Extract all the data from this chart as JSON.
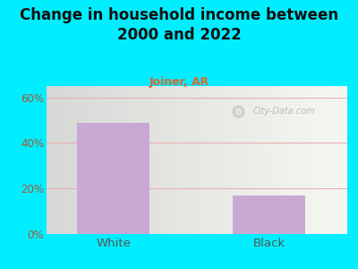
{
  "title": "Change in household income between\n2000 and 2022",
  "subtitle": "Joiner, AR",
  "categories": [
    "White",
    "Black"
  ],
  "values": [
    49,
    17
  ],
  "bar_color": "#c9a8d4",
  "title_fontsize": 12,
  "subtitle_fontsize": 9,
  "subtitle_color": "#dd6633",
  "tick_label_color": "#666666",
  "ytick_label_color": "#aa5533",
  "x_label_color": "#555555",
  "background_outer": "#00eeff",
  "ylim": [
    0,
    65
  ],
  "yticks": [
    0,
    20,
    40,
    60
  ],
  "ytick_labels": [
    "0%",
    "20%",
    "40%",
    "60%"
  ],
  "grid_color": "#e8b0b0",
  "watermark": "City-Data.com",
  "bar_positions": [
    0.7,
    2.1
  ],
  "bar_width": 0.65,
  "xlim": [
    0.1,
    2.8
  ]
}
